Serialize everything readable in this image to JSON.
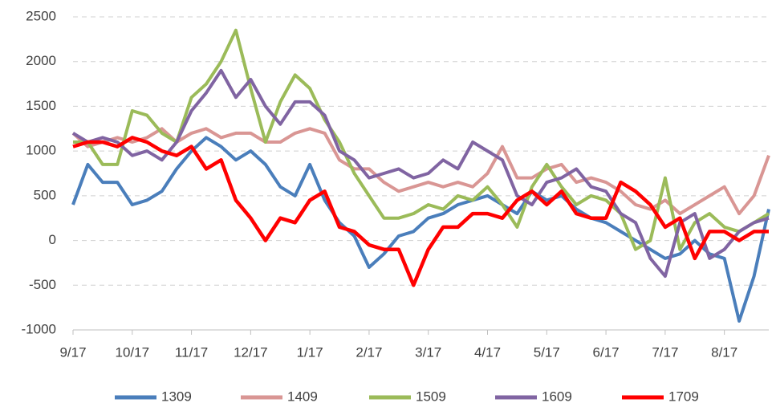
{
  "chart_data": {
    "type": "line",
    "categories": [
      "9/17",
      null,
      null,
      null,
      "10/17",
      null,
      null,
      null,
      "11/17",
      null,
      null,
      null,
      "12/17",
      null,
      null,
      null,
      "1/17",
      null,
      null,
      null,
      "2/17",
      null,
      null,
      null,
      "3/17",
      null,
      null,
      null,
      "4/17",
      null,
      null,
      null,
      "5/17",
      null,
      null,
      null,
      "6/17",
      null,
      null,
      null,
      "7/17",
      null,
      null,
      null,
      "8/17",
      null,
      null,
      null
    ],
    "series": [
      {
        "name": "1309",
        "color": "#4a7ebb",
        "values": [
          400,
          850,
          650,
          650,
          400,
          450,
          550,
          800,
          1000,
          1150,
          1050,
          900,
          1000,
          850,
          600,
          500,
          850,
          450,
          200,
          50,
          -300,
          -150,
          50,
          100,
          250,
          300,
          400,
          450,
          500,
          400,
          300,
          550,
          450,
          500,
          350,
          250,
          200,
          100,
          0,
          -100,
          -200,
          -150,
          0,
          -150,
          -200,
          -900,
          -400,
          350
        ]
      },
      {
        "name": "1409",
        "color": "#d99694",
        "values": [
          1200,
          1050,
          1100,
          1150,
          1100,
          1150,
          1250,
          1100,
          1200,
          1250,
          1150,
          1200,
          1200,
          1100,
          1100,
          1200,
          1250,
          1200,
          900,
          800,
          800,
          650,
          550,
          600,
          650,
          600,
          650,
          600,
          750,
          1050,
          700,
          700,
          800,
          850,
          650,
          700,
          650,
          550,
          400,
          350,
          450,
          300,
          400,
          500,
          600,
          300,
          500,
          950
        ]
      },
      {
        "name": "1509",
        "color": "#9bbb59",
        "values": [
          1100,
          1100,
          850,
          850,
          1450,
          1400,
          1200,
          1100,
          1600,
          1750,
          2000,
          2350,
          1700,
          1100,
          1550,
          1850,
          1700,
          1350,
          1100,
          750,
          500,
          250,
          250,
          300,
          400,
          350,
          500,
          450,
          600,
          400,
          150,
          600,
          850,
          600,
          400,
          500,
          450,
          300,
          -100,
          0,
          700,
          -100,
          200,
          300,
          150,
          100,
          200,
          300
        ]
      },
      {
        "name": "1609",
        "color": "#8064a2",
        "values": [
          1200,
          1100,
          1150,
          1100,
          950,
          1000,
          900,
          1100,
          1450,
          1650,
          1900,
          1600,
          1800,
          1500,
          1300,
          1550,
          1550,
          1400,
          1000,
          900,
          700,
          750,
          800,
          700,
          750,
          900,
          800,
          1100,
          1000,
          900,
          500,
          400,
          650,
          700,
          800,
          600,
          550,
          300,
          200,
          -200,
          -400,
          200,
          300,
          -200,
          -100,
          100,
          200,
          250
        ]
      },
      {
        "name": "1709",
        "color": "#ff0000",
        "values": [
          1050,
          1100,
          1100,
          1050,
          1150,
          1100,
          1000,
          950,
          1050,
          800,
          900,
          450,
          250,
          0,
          250,
          200,
          450,
          550,
          150,
          100,
          -50,
          -100,
          -100,
          -500,
          -100,
          150,
          150,
          300,
          300,
          250,
          450,
          550,
          400,
          550,
          300,
          250,
          250,
          650,
          550,
          400,
          150,
          250,
          -200,
          100,
          100,
          0,
          100,
          100
        ]
      }
    ],
    "ylim": [
      -1000,
      2500
    ],
    "yticks": [
      -1000,
      -500,
      0,
      500,
      1000,
      1500,
      2000,
      2500
    ],
    "grid": true,
    "legend": "bottom"
  }
}
